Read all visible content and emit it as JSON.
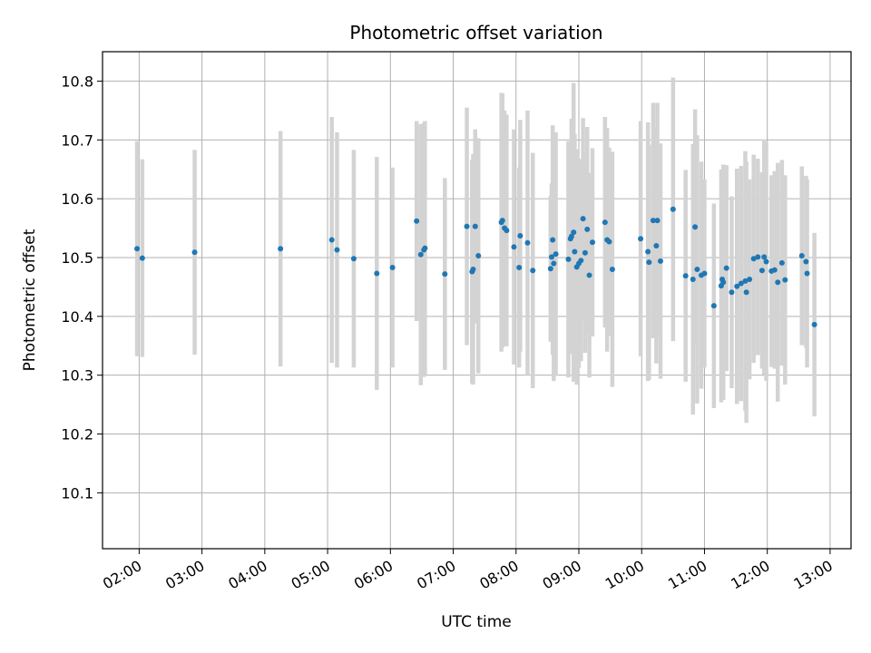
{
  "chart_data": {
    "type": "scatter",
    "title": "Photometric offset variation",
    "xlabel": "UTC time",
    "ylabel": "Photometric offset",
    "xlim": [
      "01:25",
      "13:20"
    ],
    "ylim": [
      10.005,
      10.85
    ],
    "x_ticks": [
      "02:00",
      "03:00",
      "04:00",
      "05:00",
      "06:00",
      "07:00",
      "08:00",
      "09:00",
      "10:00",
      "11:00",
      "12:00",
      "13:00"
    ],
    "y_ticks": [
      10.1,
      10.2,
      10.3,
      10.4,
      10.5,
      10.6,
      10.7,
      10.8
    ],
    "grid": true,
    "colors": {
      "point": "#1f77b4",
      "errorbar": "#d3d3d3",
      "grid": "#b0b0b0"
    },
    "series": [
      {
        "x": [
          "01:58",
          "02:03",
          "02:53",
          "04:15",
          "05:04",
          "05:09",
          "05:25",
          "05:47",
          "06:02",
          "06:25",
          "06:29",
          "06:32",
          "06:33",
          "06:52",
          "07:13",
          "07:18",
          "07:19",
          "07:21",
          "07:24",
          "07:46",
          "07:47",
          "07:49",
          "07:51",
          "07:58",
          "08:03",
          "08:04",
          "08:11",
          "08:16",
          "08:33",
          "08:34",
          "08:35",
          "08:36",
          "08:38",
          "08:50",
          "08:52",
          "08:53",
          "08:55",
          "08:56",
          "08:58",
          "09:00",
          "09:02",
          "09:04",
          "09:06",
          "09:08",
          "09:10",
          "09:13",
          "09:25",
          "09:27",
          "09:29",
          "09:32",
          "09:59",
          "10:06",
          "10:07",
          "10:11",
          "10:14",
          "10:15",
          "10:18",
          "10:30",
          "10:42",
          "10:49",
          "10:51",
          "10:53",
          "10:57",
          "11:00",
          "11:09",
          "11:16",
          "11:17",
          "11:18",
          "11:21",
          "11:26",
          "11:31",
          "11:35",
          "11:39",
          "11:40",
          "11:43",
          "11:47",
          "11:51",
          "11:55",
          "11:57",
          "11:59",
          "12:04",
          "12:07",
          "12:10",
          "12:14",
          "12:17",
          "12:33",
          "12:37",
          "12:38",
          "12:45"
        ],
        "y": [
          10.515,
          10.499,
          10.509,
          10.515,
          10.53,
          10.513,
          10.498,
          10.473,
          10.483,
          10.562,
          10.505,
          10.513,
          10.516,
          10.472,
          10.553,
          10.476,
          10.48,
          10.553,
          10.503,
          10.56,
          10.563,
          10.55,
          10.546,
          10.518,
          10.483,
          10.537,
          10.525,
          10.478,
          10.481,
          10.501,
          10.53,
          10.49,
          10.506,
          10.497,
          10.532,
          10.536,
          10.543,
          10.51,
          10.484,
          10.49,
          10.495,
          10.566,
          10.508,
          10.548,
          10.47,
          10.526,
          10.56,
          10.53,
          10.527,
          10.48,
          10.532,
          10.51,
          10.492,
          10.563,
          10.52,
          10.563,
          10.494,
          10.582,
          10.469,
          10.463,
          10.552,
          10.48,
          10.47,
          10.473,
          10.418,
          10.452,
          10.463,
          10.458,
          10.482,
          10.441,
          10.451,
          10.456,
          10.46,
          10.441,
          10.463,
          10.498,
          10.501,
          10.478,
          10.501,
          10.493,
          10.477,
          10.479,
          10.458,
          10.491,
          10.462,
          10.503,
          10.493,
          10.473,
          10.386
        ],
        "err": [
          0.183,
          0.168,
          0.174,
          0.2,
          0.209,
          0.2,
          0.185,
          0.198,
          0.17,
          0.17,
          0.222,
          0.216,
          0.216,
          0.163,
          0.202,
          0.19,
          0.196,
          0.165,
          0.2,
          0.22,
          0.216,
          0.2,
          0.197,
          0.2,
          0.17,
          0.197,
          0.225,
          0.2,
          0.124,
          0.125,
          0.195,
          0.2,
          0.207,
          0.201,
          0.161,
          0.2,
          0.254,
          0.2,
          0.2,
          0.178,
          0.171,
          0.171,
          0.17,
          0.174,
          0.174,
          0.16,
          0.179,
          0.19,
          0.16,
          0.2,
          0.2,
          0.22,
          0.2,
          0.2,
          0.2,
          0.2,
          0.2,
          0.224,
          0.18,
          0.23,
          0.2,
          0.228,
          0.193,
          0.16,
          0.174,
          0.198,
          0.175,
          0.2,
          0.175,
          0.163,
          0.2,
          0.2,
          0.221,
          0.222,
          0.17,
          0.177,
          0.167,
          0.167,
          0.2,
          0.203,
          0.163,
          0.168,
          0.203,
          0.175,
          0.178,
          0.152,
          0.146,
          0.16,
          0.156
        ]
      }
    ]
  }
}
